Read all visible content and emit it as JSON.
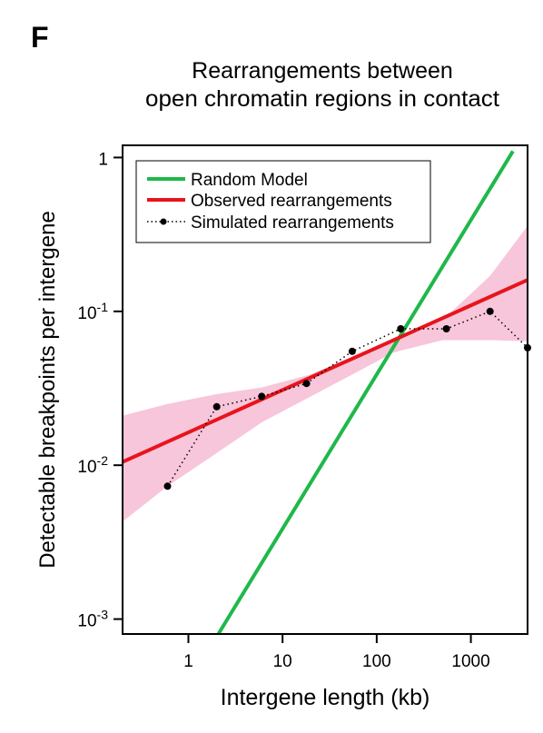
{
  "panel_letter": "F",
  "chart_data": {
    "type": "line",
    "title": "Rearrangements between",
    "subtitle": "open chromatin regions in contact",
    "xlabel": "Intergene length (kb)",
    "ylabel": "Detectable breakpoints per intergene",
    "x_scale": "log",
    "y_scale": "log",
    "xlim": [
      0.2,
      4000
    ],
    "ylim": [
      0.0008,
      1.2
    ],
    "x_ticks": [
      {
        "value": 1,
        "label": "1"
      },
      {
        "value": 10,
        "label": "10"
      },
      {
        "value": 100,
        "label": "100"
      },
      {
        "value": 1000,
        "label": "1000"
      }
    ],
    "y_ticks": [
      {
        "value": 0.001,
        "base": "10",
        "exp": "-3"
      },
      {
        "value": 0.01,
        "base": "10",
        "exp": "-2"
      },
      {
        "value": 0.1,
        "base": "10",
        "exp": "-1"
      },
      {
        "value": 1,
        "base": "1",
        "exp": ""
      }
    ],
    "grid": false,
    "legend_position": "top-left",
    "series": [
      {
        "name": "Random Model",
        "style": "solid",
        "color": "#1fb84a",
        "x": [
          1.95,
          2800
        ],
        "y": [
          0.00075,
          1.1
        ]
      },
      {
        "name": "Observed rearrangements",
        "style": "solid",
        "color": "#e8141c",
        "x": [
          0.2,
          4000
        ],
        "y": [
          0.0105,
          0.16
        ]
      },
      {
        "name": "Simulated rearrangements",
        "style": "dotted-markers",
        "color": "#000000",
        "x": [
          0.6,
          2,
          6,
          18,
          55,
          180,
          550,
          1600,
          4000
        ],
        "y": [
          0.0073,
          0.024,
          0.028,
          0.034,
          0.055,
          0.077,
          0.077,
          0.1,
          0.058
        ]
      }
    ],
    "band": {
      "color": "#f7c6da",
      "x": [
        0.2,
        0.6,
        2,
        6,
        20,
        60,
        150,
        500,
        1600,
        4000
      ],
      "upper": [
        0.021,
        0.025,
        0.029,
        0.032,
        0.039,
        0.052,
        0.066,
        0.088,
        0.17,
        0.36
      ],
      "lower": [
        0.0043,
        0.0073,
        0.012,
        0.019,
        0.028,
        0.04,
        0.054,
        0.065,
        0.065,
        0.064
      ]
    }
  }
}
